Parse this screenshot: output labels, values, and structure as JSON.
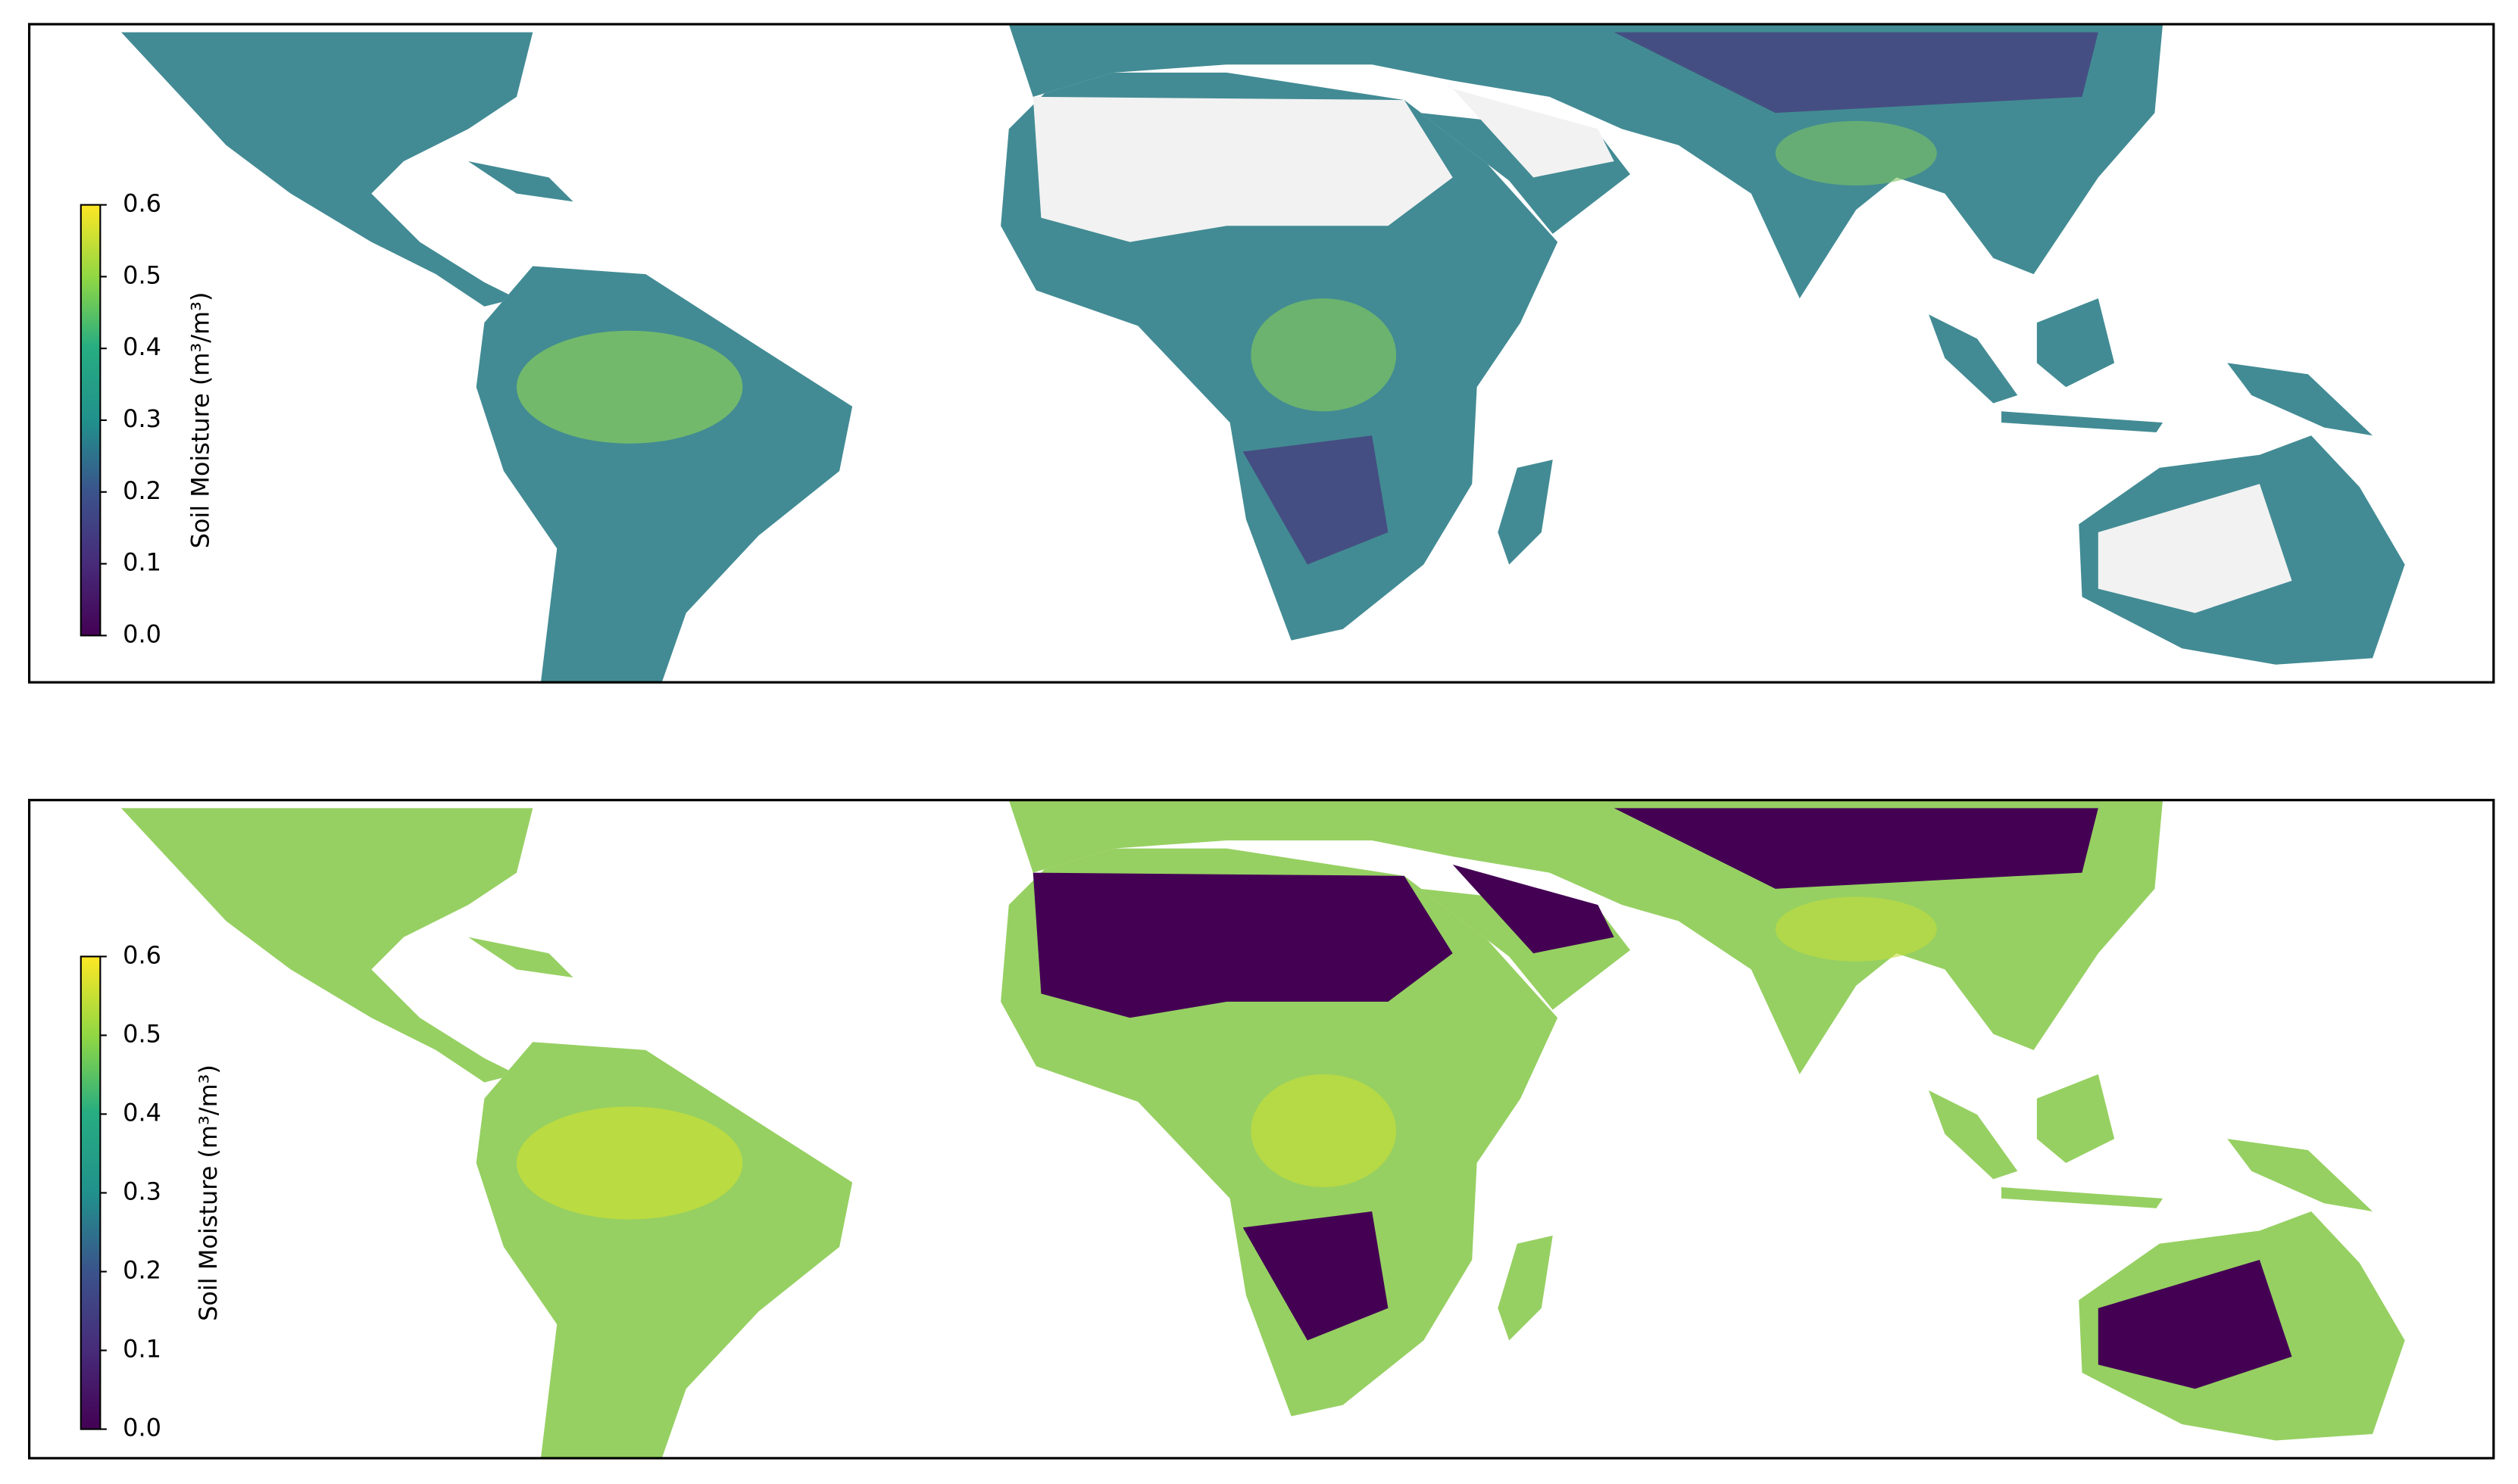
{
  "panels": [
    {
      "colorbar": {
        "label": "Soil Moisture (m³/m³)",
        "clim": [
          0,
          0.6
        ],
        "ticks": [
          {
            "value": 0,
            "label": "0.0"
          },
          0.1,
          0.2,
          0.3,
          0.4,
          0.5,
          0.6
        ]
      }
    },
    {
      "colorbar": {
        "label": "Soil Moisture (m³/m³)",
        "clim": [
          0,
          0.6
        ],
        "ticks": [
          {
            "value": 0,
            "label": "0.0"
          },
          0.1,
          0.2,
          0.3,
          0.4,
          0.5,
          0.6
        ]
      }
    }
  ]
}
